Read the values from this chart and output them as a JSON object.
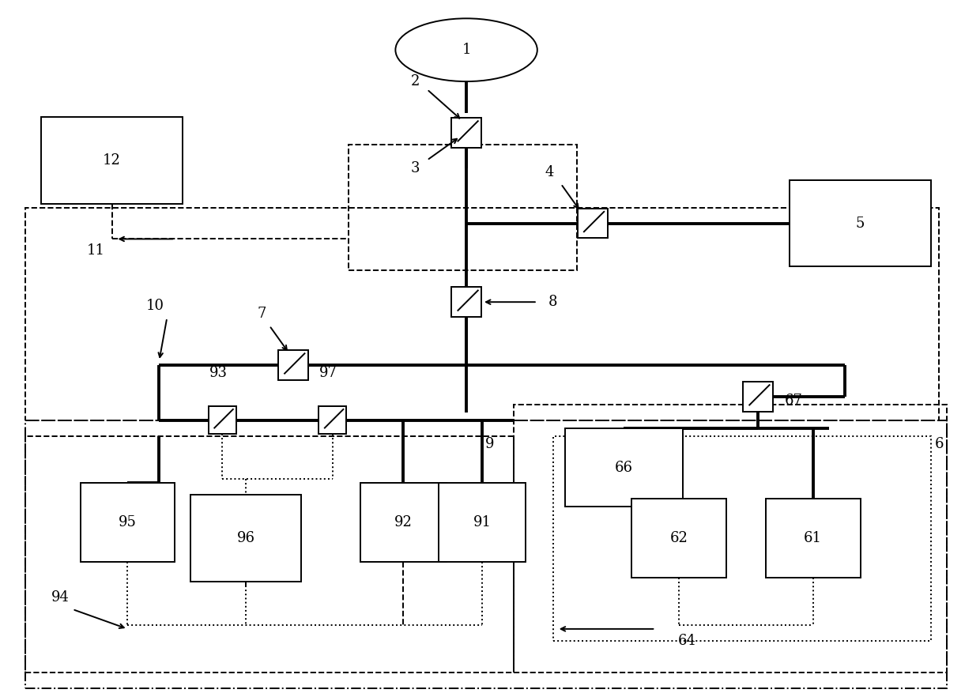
{
  "fig_width": 12.4,
  "fig_height": 8.82,
  "bg_color": "#ffffff",
  "thick_lw": 2.8,
  "thin_lw": 1.4,
  "font_size": 13
}
